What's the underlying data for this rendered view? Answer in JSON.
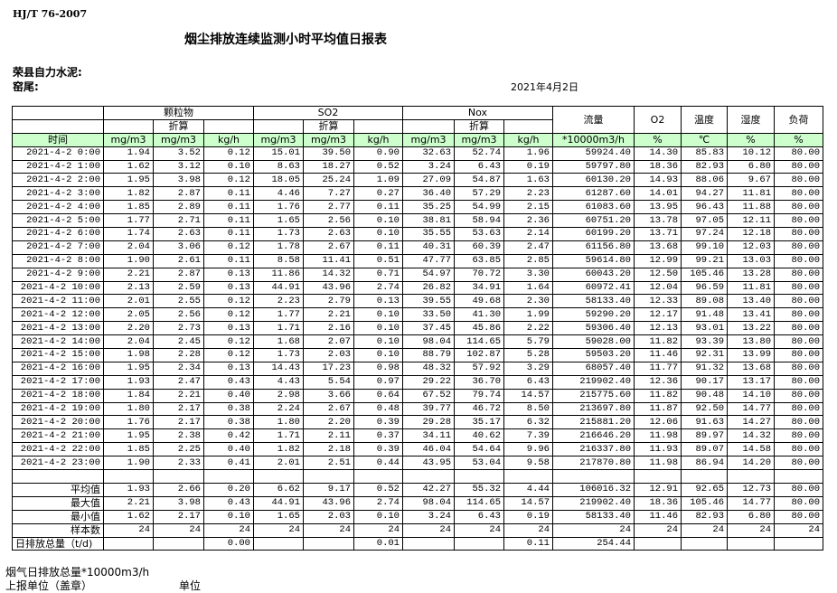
{
  "header": {
    "standard": "HJ/T  76-2007",
    "title": "烟尘排放连续监测小时平均值日报表",
    "company": "荣县自力水泥:",
    "kiln": "窑尾:",
    "date": "2021年4月2日"
  },
  "table": {
    "groups": [
      "颗粒物",
      "SO2",
      "Nox"
    ],
    "sub_label": "折算",
    "single_cols": [
      "流量",
      "O2",
      "温度",
      "湿度",
      "负荷"
    ],
    "units": [
      "时间",
      "mg/m3",
      "mg/m3",
      "kg/h",
      "mg/m3",
      "mg/m3",
      "kg/h",
      "mg/m3",
      "mg/m3",
      "kg/h",
      "*10000m3/h",
      "%",
      "℃",
      "%",
      "%"
    ],
    "header_color": "#ccffcc",
    "rows": [
      [
        "2021-4-2 0:00",
        "1.94",
        "3.52",
        "0.12",
        "15.01",
        "39.50",
        "0.90",
        "32.63",
        "52.74",
        "1.96",
        "59924.40",
        "14.30",
        "85.83",
        "10.12",
        "80.00"
      ],
      [
        "2021-4-2 1:00",
        "1.62",
        "3.12",
        "0.10",
        "8.63",
        "18.27",
        "0.52",
        "3.24",
        "6.43",
        "0.19",
        "59797.80",
        "18.36",
        "82.93",
        "6.80",
        "80.00"
      ],
      [
        "2021-4-2 2:00",
        "1.95",
        "3.98",
        "0.12",
        "18.05",
        "25.24",
        "1.09",
        "27.09",
        "54.87",
        "1.63",
        "60130.20",
        "14.93",
        "88.06",
        "9.67",
        "80.00"
      ],
      [
        "2021-4-2 3:00",
        "1.82",
        "2.87",
        "0.11",
        "4.46",
        "7.27",
        "0.27",
        "36.40",
        "57.29",
        "2.23",
        "61287.60",
        "14.01",
        "94.27",
        "11.81",
        "80.00"
      ],
      [
        "2021-4-2 4:00",
        "1.85",
        "2.89",
        "0.11",
        "1.76",
        "2.77",
        "0.11",
        "35.25",
        "54.99",
        "2.15",
        "61083.60",
        "13.95",
        "96.43",
        "11.88",
        "80.00"
      ],
      [
        "2021-4-2 5:00",
        "1.77",
        "2.71",
        "0.11",
        "1.65",
        "2.56",
        "0.10",
        "38.81",
        "58.94",
        "2.36",
        "60751.20",
        "13.78",
        "97.05",
        "12.11",
        "80.00"
      ],
      [
        "2021-4-2 6:00",
        "1.74",
        "2.63",
        "0.11",
        "1.73",
        "2.63",
        "0.10",
        "35.55",
        "53.63",
        "2.14",
        "60199.20",
        "13.71",
        "97.24",
        "12.18",
        "80.00"
      ],
      [
        "2021-4-2 7:00",
        "2.04",
        "3.06",
        "0.12",
        "1.78",
        "2.67",
        "0.11",
        "40.31",
        "60.39",
        "2.47",
        "61156.80",
        "13.68",
        "99.10",
        "12.03",
        "80.00"
      ],
      [
        "2021-4-2 8:00",
        "1.90",
        "2.61",
        "0.11",
        "8.58",
        "11.41",
        "0.51",
        "47.77",
        "63.85",
        "2.85",
        "59614.80",
        "12.99",
        "99.21",
        "13.03",
        "80.00"
      ],
      [
        "2021-4-2 9:00",
        "2.21",
        "2.87",
        "0.13",
        "11.86",
        "14.32",
        "0.71",
        "54.97",
        "70.72",
        "3.30",
        "60043.20",
        "12.50",
        "105.46",
        "13.28",
        "80.00"
      ],
      [
        "2021-4-2 10:00",
        "2.13",
        "2.59",
        "0.13",
        "44.91",
        "43.96",
        "2.74",
        "26.82",
        "34.91",
        "1.64",
        "60972.41",
        "12.04",
        "96.59",
        "11.81",
        "80.00"
      ],
      [
        "2021-4-2 11:00",
        "2.01",
        "2.55",
        "0.12",
        "2.23",
        "2.79",
        "0.13",
        "39.55",
        "49.68",
        "2.30",
        "58133.40",
        "12.33",
        "89.08",
        "13.40",
        "80.00"
      ],
      [
        "2021-4-2 12:00",
        "2.05",
        "2.56",
        "0.12",
        "1.77",
        "2.21",
        "0.10",
        "33.50",
        "41.30",
        "1.99",
        "59290.20",
        "12.17",
        "91.48",
        "13.41",
        "80.00"
      ],
      [
        "2021-4-2 13:00",
        "2.20",
        "2.73",
        "0.13",
        "1.71",
        "2.16",
        "0.10",
        "37.45",
        "45.86",
        "2.22",
        "59306.40",
        "12.13",
        "93.01",
        "13.22",
        "80.00"
      ],
      [
        "2021-4-2 14:00",
        "2.04",
        "2.45",
        "0.12",
        "1.68",
        "2.07",
        "0.10",
        "98.04",
        "114.65",
        "5.79",
        "59028.00",
        "11.82",
        "93.39",
        "13.80",
        "80.00"
      ],
      [
        "2021-4-2 15:00",
        "1.98",
        "2.28",
        "0.12",
        "1.73",
        "2.03",
        "0.10",
        "88.79",
        "102.87",
        "5.28",
        "59503.20",
        "11.46",
        "92.31",
        "13.99",
        "80.00"
      ],
      [
        "2021-4-2 16:00",
        "1.95",
        "2.34",
        "0.13",
        "14.43",
        "17.23",
        "0.98",
        "48.32",
        "57.92",
        "3.29",
        "68057.40",
        "11.77",
        "91.32",
        "13.68",
        "80.00"
      ],
      [
        "2021-4-2 17:00",
        "1.93",
        "2.47",
        "0.43",
        "4.43",
        "5.54",
        "0.97",
        "29.22",
        "36.70",
        "6.43",
        "219902.40",
        "12.36",
        "90.17",
        "13.17",
        "80.00"
      ],
      [
        "2021-4-2 18:00",
        "1.84",
        "2.21",
        "0.40",
        "2.98",
        "3.66",
        "0.64",
        "67.52",
        "79.74",
        "14.57",
        "215775.60",
        "11.82",
        "90.48",
        "14.10",
        "80.00"
      ],
      [
        "2021-4-2 19:00",
        "1.80",
        "2.17",
        "0.38",
        "2.24",
        "2.67",
        "0.48",
        "39.77",
        "46.72",
        "8.50",
        "213697.80",
        "11.87",
        "92.50",
        "14.77",
        "80.00"
      ],
      [
        "2021-4-2 20:00",
        "1.76",
        "2.17",
        "0.38",
        "1.80",
        "2.20",
        "0.39",
        "29.28",
        "35.17",
        "6.32",
        "215881.20",
        "12.06",
        "91.63",
        "14.27",
        "80.00"
      ],
      [
        "2021-4-2 21:00",
        "1.95",
        "2.38",
        "0.42",
        "1.71",
        "2.11",
        "0.37",
        "34.11",
        "40.62",
        "7.39",
        "216646.20",
        "11.98",
        "89.97",
        "14.32",
        "80.00"
      ],
      [
        "2021-4-2 22:00",
        "1.85",
        "2.25",
        "0.40",
        "1.82",
        "2.18",
        "0.39",
        "46.04",
        "54.64",
        "9.96",
        "216337.80",
        "11.93",
        "89.07",
        "14.58",
        "80.00"
      ],
      [
        "2021-4-2 23:00",
        "1.90",
        "2.33",
        "0.41",
        "2.01",
        "2.51",
        "0.44",
        "43.95",
        "53.04",
        "9.58",
        "217870.80",
        "11.98",
        "86.94",
        "14.20",
        "80.00"
      ]
    ],
    "summary": [
      [
        "平均值",
        "1.93",
        "2.66",
        "0.20",
        "6.62",
        "9.17",
        "0.52",
        "42.27",
        "55.32",
        "4.44",
        "106016.32",
        "12.91",
        "92.65",
        "12.73",
        "80.00"
      ],
      [
        "最大值",
        "2.21",
        "3.98",
        "0.43",
        "44.91",
        "43.96",
        "2.74",
        "98.04",
        "114.65",
        "14.57",
        "219902.40",
        "18.36",
        "105.46",
        "14.77",
        "80.00"
      ],
      [
        "最小值",
        "1.62",
        "2.17",
        "0.10",
        "1.65",
        "2.03",
        "0.10",
        "3.24",
        "6.43",
        "0.19",
        "58133.40",
        "11.46",
        "82.93",
        "6.80",
        "80.00"
      ],
      [
        "样本数",
        "24",
        "24",
        "24",
        "24",
        "24",
        "24",
        "24",
        "24",
        "24",
        "24",
        "24",
        "24",
        "24",
        "24"
      ],
      [
        "日排放总量（t/d)",
        "",
        "",
        "0.00",
        "",
        "",
        "0.01",
        "",
        "",
        "0.11",
        "254.44",
        "",
        "",
        "",
        ""
      ]
    ]
  },
  "footer": {
    "flue_total": "烟气日排放总量*10000m3/h",
    "reporter": "上报单位（盖章）",
    "unit": "单位"
  }
}
